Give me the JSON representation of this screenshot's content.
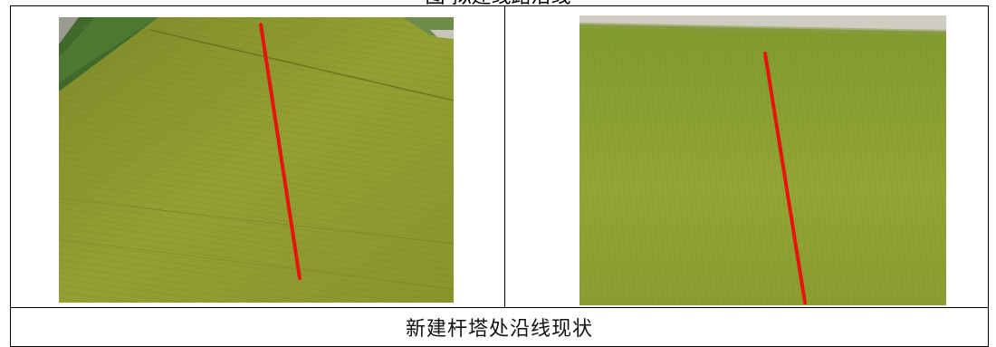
{
  "document": {
    "heading_partial": "图  拟建线路沿线",
    "caption": "新建杆塔处沿线现状"
  },
  "photos": [
    {
      "name": "aerial-photo-left",
      "subject": "rice field with route line",
      "field_color": "#8f9a2e",
      "route_line_color": "#e8130c"
    },
    {
      "name": "aerial-photo-right",
      "subject": "rice field with route line",
      "field_color": "#8ea032",
      "route_line_color": "#e8130c"
    }
  ]
}
